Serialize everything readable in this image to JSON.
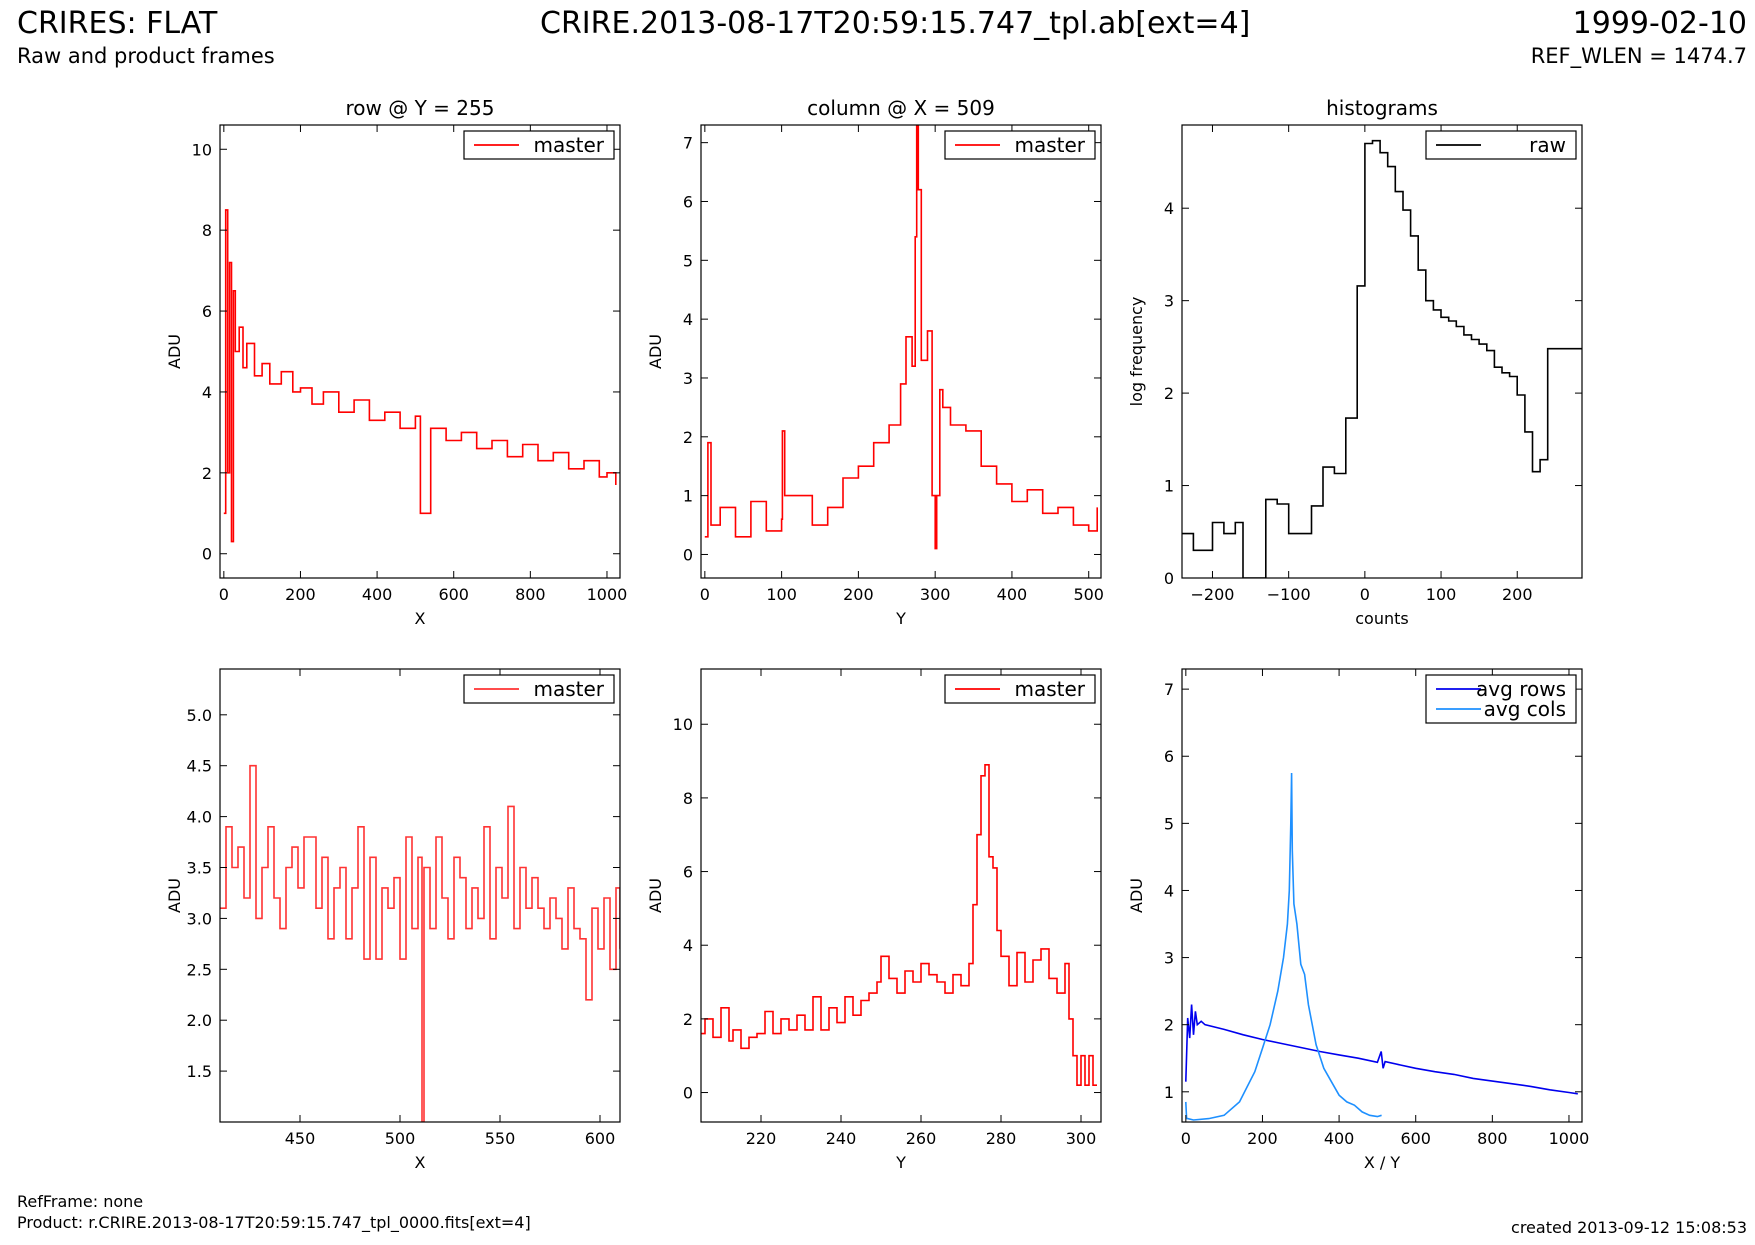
{
  "header": {
    "title": "CRIRES: FLAT",
    "subtitle": "Raw and product frames",
    "file": "CRIRE.2013-08-17T20:59:15.747_tpl.ab[ext=4]",
    "date": "1999-02-10",
    "ref_wlen": "REF_WLEN = 1474.7"
  },
  "footer": {
    "refframe": "RefFrame: none",
    "product": "Product: r.CRIRE.2013-08-17T20:59:15.747_tpl_0000.fits[ext=4]",
    "created": "created 2013-09-12 15:08:53"
  },
  "chart_data": [
    {
      "id": "row-plot",
      "type": "line",
      "step": true,
      "title": "row @ Y = 255",
      "xlabel": "X",
      "ylabel": "ADU",
      "xlim": [
        -10,
        1034
      ],
      "ylim": [
        -0.6,
        10.6
      ],
      "xticks": [
        0,
        200,
        400,
        600,
        800,
        1000
      ],
      "yticks": [
        0,
        2,
        4,
        6,
        8,
        10
      ],
      "legend": "top-right",
      "series": [
        {
          "name": "master",
          "color": "#ff0000",
          "x": [
            0,
            5,
            10,
            15,
            20,
            25,
            30,
            40,
            50,
            60,
            80,
            100,
            120,
            150,
            180,
            200,
            230,
            260,
            300,
            340,
            380,
            420,
            460,
            500,
            513,
            540,
            580,
            620,
            660,
            700,
            740,
            780,
            820,
            860,
            900,
            940,
            980,
            1000,
            1023
          ],
          "values": [
            1.0,
            8.5,
            2.0,
            7.2,
            0.3,
            6.5,
            5.0,
            5.6,
            4.6,
            5.2,
            4.4,
            4.7,
            4.2,
            4.5,
            4.0,
            4.1,
            3.7,
            4.0,
            3.5,
            3.8,
            3.3,
            3.5,
            3.1,
            3.4,
            1.0,
            3.1,
            2.8,
            3.0,
            2.6,
            2.8,
            2.4,
            2.7,
            2.3,
            2.5,
            2.1,
            2.3,
            1.9,
            2.0,
            1.7
          ]
        }
      ]
    },
    {
      "id": "column-plot",
      "type": "line",
      "step": true,
      "title": "column @ X = 509",
      "xlabel": "Y",
      "ylabel": "ADU",
      "xlim": [
        -5,
        516
      ],
      "ylim": [
        -0.4,
        7.3
      ],
      "xticks": [
        0,
        100,
        200,
        300,
        400,
        500
      ],
      "yticks": [
        0,
        1,
        2,
        3,
        4,
        5,
        6,
        7
      ],
      "legend": "top-right",
      "series": [
        {
          "name": "master",
          "color": "#ff0000",
          "x": [
            0,
            4,
            8,
            20,
            40,
            60,
            80,
            100,
            101,
            104,
            120,
            140,
            160,
            180,
            200,
            220,
            240,
            255,
            262,
            270,
            274,
            276,
            278,
            282,
            290,
            296,
            300,
            302,
            306,
            310,
            320,
            340,
            360,
            380,
            400,
            420,
            440,
            460,
            480,
            500,
            511
          ],
          "values": [
            0.3,
            1.9,
            0.5,
            0.8,
            0.3,
            0.9,
            0.4,
            0.6,
            2.1,
            1.0,
            1.0,
            0.5,
            0.8,
            1.3,
            1.5,
            1.9,
            2.2,
            2.9,
            3.7,
            3.2,
            5.4,
            7.3,
            6.2,
            3.3,
            3.8,
            1.0,
            0.1,
            1.0,
            2.8,
            2.5,
            2.2,
            2.1,
            1.5,
            1.2,
            0.9,
            1.1,
            0.7,
            0.8,
            0.5,
            0.4,
            0.8
          ]
        }
      ]
    },
    {
      "id": "histogram-plot",
      "type": "line",
      "step": true,
      "title": "histograms",
      "xlabel": "counts",
      "ylabel": "log frequency",
      "xlim": [
        -240,
        285
      ],
      "ylim": [
        0,
        4.9
      ],
      "xticks": [
        -200,
        -100,
        0,
        100,
        200
      ],
      "yticks": [
        0,
        1,
        2,
        3,
        4
      ],
      "legend": "top-right",
      "series": [
        {
          "name": "raw",
          "color": "#000000",
          "x": [
            -240,
            -225,
            -200,
            -185,
            -170,
            -160,
            -130,
            -115,
            -100,
            -80,
            -70,
            -55,
            -40,
            -25,
            -10,
            0,
            10,
            20,
            30,
            40,
            50,
            60,
            70,
            80,
            90,
            100,
            110,
            120,
            130,
            140,
            150,
            160,
            170,
            180,
            190,
            200,
            210,
            220,
            230,
            240,
            255,
            270,
            285
          ],
          "values": [
            0.48,
            0.3,
            0.6,
            0.48,
            0.6,
            0.0,
            0.85,
            0.8,
            0.48,
            0.48,
            0.78,
            1.2,
            1.13,
            1.73,
            3.16,
            4.7,
            4.73,
            4.6,
            4.45,
            4.18,
            3.98,
            3.7,
            3.33,
            3.0,
            2.9,
            2.82,
            2.78,
            2.72,
            2.63,
            2.58,
            2.53,
            2.46,
            2.28,
            2.22,
            2.18,
            1.98,
            1.58,
            1.15,
            1.28,
            2.48,
            2.48,
            2.48,
            2.48
          ]
        }
      ]
    },
    {
      "id": "row-zoom-plot",
      "type": "line",
      "step": true,
      "title": "",
      "xlabel": "X",
      "ylabel": "ADU",
      "xlim": [
        410,
        610
      ],
      "ylim": [
        1.0,
        5.45
      ],
      "xticks": [
        450,
        500,
        550,
        600
      ],
      "yticks": [
        1.5,
        2.0,
        2.5,
        3.0,
        3.5,
        4.0,
        4.5,
        5.0
      ],
      "legend": "top-right",
      "series": [
        {
          "name": "master",
          "color": "#ff3333",
          "x": [
            410,
            413,
            416,
            419,
            422,
            425,
            428,
            431,
            434,
            437,
            440,
            443,
            446,
            449,
            452,
            455,
            458,
            461,
            464,
            467,
            470,
            473,
            476,
            479,
            482,
            485,
            488,
            491,
            494,
            497,
            500,
            503,
            506,
            509,
            511,
            512,
            515,
            518,
            521,
            524,
            527,
            530,
            533,
            536,
            539,
            542,
            545,
            548,
            551,
            554,
            557,
            560,
            563,
            566,
            569,
            572,
            575,
            578,
            581,
            584,
            587,
            590,
            593,
            596,
            599,
            602,
            605,
            608,
            610
          ],
          "values": [
            3.1,
            3.9,
            3.5,
            3.7,
            3.2,
            4.5,
            3.0,
            3.5,
            3.9,
            3.2,
            2.9,
            3.5,
            3.7,
            3.3,
            3.8,
            3.8,
            3.1,
            3.6,
            2.8,
            3.3,
            3.5,
            2.8,
            3.3,
            3.9,
            2.6,
            3.6,
            2.6,
            3.3,
            3.1,
            3.4,
            2.6,
            3.8,
            2.9,
            3.6,
            1.0,
            3.5,
            2.9,
            3.8,
            3.2,
            2.8,
            3.6,
            3.4,
            2.9,
            3.3,
            3.0,
            3.9,
            2.8,
            3.5,
            3.2,
            4.1,
            2.9,
            3.5,
            3.1,
            3.4,
            3.1,
            2.9,
            3.2,
            3.0,
            2.7,
            3.3,
            2.9,
            2.8,
            2.2,
            3.1,
            2.7,
            3.2,
            2.5,
            3.3,
            2.7
          ]
        }
      ]
    },
    {
      "id": "column-zoom-plot",
      "type": "line",
      "step": true,
      "title": "",
      "xlabel": "Y",
      "ylabel": "ADU",
      "xlim": [
        205,
        305
      ],
      "ylim": [
        -0.8,
        11.5
      ],
      "xticks": [
        220,
        240,
        260,
        280,
        300
      ],
      "yticks": [
        0,
        2,
        4,
        6,
        8,
        10
      ],
      "legend": "top-right",
      "series": [
        {
          "name": "master",
          "color": "#ff0000",
          "x": [
            205,
            206,
            208,
            210,
            212,
            213,
            215,
            217,
            219,
            221,
            223,
            225,
            227,
            229,
            231,
            233,
            235,
            237,
            239,
            241,
            243,
            245,
            247,
            249,
            250,
            252,
            254,
            256,
            258,
            260,
            262,
            264,
            266,
            268,
            270,
            272,
            273,
            274,
            275,
            276,
            277,
            278,
            279,
            280,
            282,
            284,
            286,
            288,
            290,
            292,
            294,
            296,
            297,
            298,
            299,
            300,
            301,
            302,
            303,
            304
          ],
          "values": [
            1.6,
            2.0,
            1.5,
            2.3,
            1.4,
            1.7,
            1.2,
            1.5,
            1.6,
            2.2,
            1.6,
            2.0,
            1.7,
            2.1,
            1.7,
            2.6,
            1.7,
            2.3,
            1.9,
            2.6,
            2.1,
            2.5,
            2.7,
            3.0,
            3.7,
            3.1,
            2.7,
            3.3,
            3.0,
            3.5,
            3.2,
            3.0,
            2.7,
            3.2,
            2.9,
            3.5,
            5.1,
            7.0,
            8.6,
            8.9,
            6.4,
            6.1,
            4.4,
            3.7,
            2.9,
            3.8,
            3.0,
            3.6,
            3.9,
            3.1,
            2.7,
            3.5,
            2.0,
            1.0,
            0.2,
            1.0,
            0.2,
            1.0,
            0.2,
            0.2
          ]
        }
      ]
    },
    {
      "id": "average-plot",
      "type": "line",
      "step": false,
      "title": "",
      "xlabel": "X / Y",
      "ylabel": "ADU",
      "xlim": [
        -10,
        1034
      ],
      "ylim": [
        0.55,
        7.3
      ],
      "xticks": [
        0,
        200,
        400,
        600,
        800,
        1000
      ],
      "yticks": [
        1,
        2,
        3,
        4,
        5,
        6,
        7
      ],
      "legend": "top-right",
      "series": [
        {
          "name": "avg rows",
          "color": "#0000ee",
          "x": [
            0,
            5,
            10,
            15,
            20,
            25,
            30,
            40,
            50,
            100,
            150,
            200,
            250,
            300,
            350,
            400,
            450,
            500,
            510,
            515,
            520,
            560,
            600,
            650,
            700,
            750,
            800,
            850,
            900,
            950,
            1000,
            1023
          ],
          "values": [
            1.15,
            2.1,
            1.8,
            2.3,
            1.85,
            2.2,
            2.0,
            2.05,
            2.0,
            1.93,
            1.85,
            1.78,
            1.72,
            1.66,
            1.6,
            1.55,
            1.5,
            1.44,
            1.6,
            1.35,
            1.45,
            1.4,
            1.35,
            1.3,
            1.26,
            1.2,
            1.16,
            1.12,
            1.08,
            1.03,
            0.99,
            0.97
          ]
        },
        {
          "name": "avg cols",
          "color": "#1e90ff",
          "x": [
            0,
            2,
            5,
            20,
            60,
            100,
            140,
            180,
            200,
            220,
            240,
            255,
            265,
            270,
            274,
            276,
            278,
            282,
            290,
            300,
            310,
            320,
            340,
            360,
            380,
            400,
            420,
            440,
            460,
            480,
            500,
            511
          ],
          "values": [
            0.85,
            0.6,
            0.6,
            0.58,
            0.6,
            0.65,
            0.85,
            1.3,
            1.65,
            2.0,
            2.5,
            3.0,
            3.5,
            4.0,
            5.0,
            5.75,
            4.6,
            3.8,
            3.5,
            2.9,
            2.75,
            2.3,
            1.7,
            1.35,
            1.15,
            0.95,
            0.85,
            0.8,
            0.7,
            0.65,
            0.63,
            0.65
          ]
        }
      ]
    }
  ]
}
